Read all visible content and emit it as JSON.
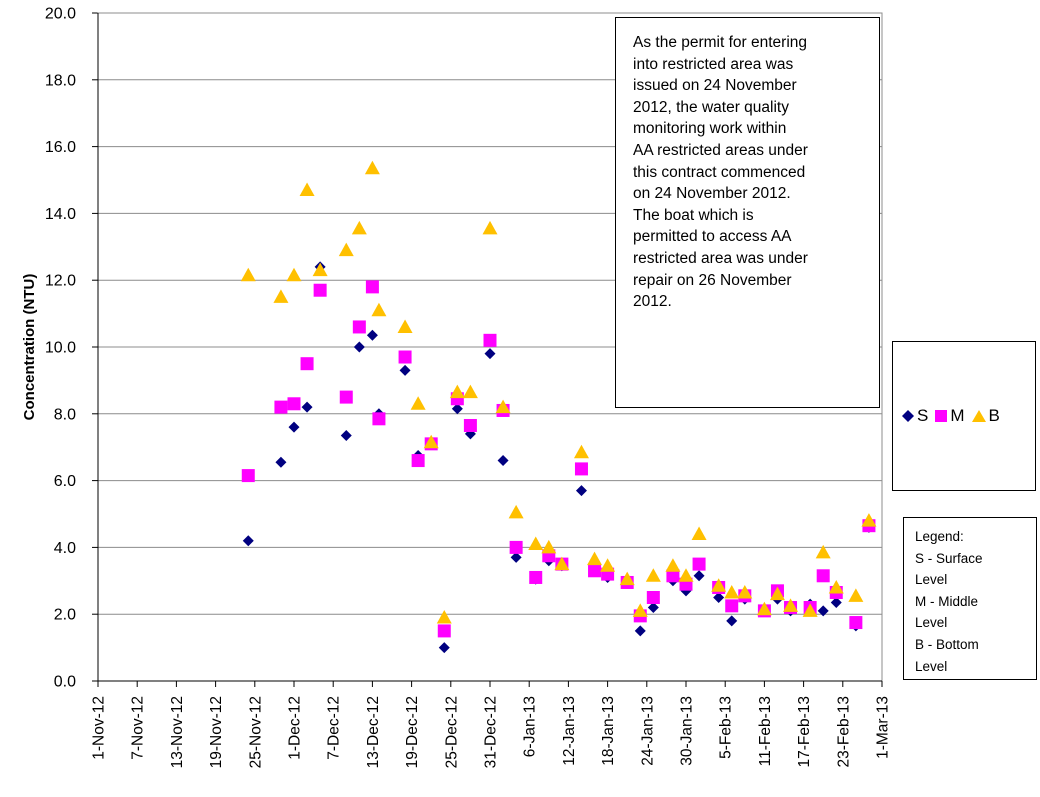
{
  "chart_data": {
    "type": "scatter",
    "ylabel": "Concentration (NTU)",
    "ylim": [
      0,
      20
    ],
    "yticks": [
      "0.0",
      "2.0",
      "4.0",
      "6.0",
      "8.0",
      "10.0",
      "12.0",
      "14.0",
      "16.0",
      "18.0",
      "20.0"
    ],
    "xlim": [
      "2012-11-01",
      "2013-03-01"
    ],
    "xticks": [
      "1-Nov-12",
      "7-Nov-12",
      "13-Nov-12",
      "19-Nov-12",
      "25-Nov-12",
      "1-Dec-12",
      "7-Dec-12",
      "13-Dec-12",
      "19-Dec-12",
      "25-Dec-12",
      "31-Dec-12",
      "6-Jan-13",
      "12-Jan-13",
      "18-Jan-13",
      "24-Jan-13",
      "30-Jan-13",
      "5-Feb-13",
      "11-Feb-13",
      "17-Feb-13",
      "23-Feb-13",
      "1-Mar-13"
    ],
    "grid": "horizontal",
    "legend_position": "right",
    "series": [
      {
        "name": "S",
        "color": "#000080",
        "marker": "diamond",
        "points": [
          [
            "2012-11-24",
            4.2
          ],
          [
            "2012-11-29",
            6.55
          ],
          [
            "2012-12-01",
            7.6
          ],
          [
            "2012-12-03",
            8.2
          ],
          [
            "2012-12-05",
            12.4
          ],
          [
            "2012-12-09",
            7.35
          ],
          [
            "2012-12-11",
            10.0
          ],
          [
            "2012-12-13",
            10.35
          ],
          [
            "2012-12-14",
            8.0
          ],
          [
            "2012-12-18",
            9.3
          ],
          [
            "2012-12-20",
            6.75
          ],
          [
            "2012-12-22",
            7.1
          ],
          [
            "2012-12-24",
            1.0
          ],
          [
            "2012-12-26",
            8.15
          ],
          [
            "2012-12-28",
            7.4
          ],
          [
            "2012-12-31",
            9.8
          ],
          [
            "2013-01-02",
            6.6
          ],
          [
            "2013-01-04",
            3.7
          ],
          [
            "2013-01-07",
            3.05
          ],
          [
            "2013-01-09",
            3.6
          ],
          [
            "2013-01-11",
            3.45
          ],
          [
            "2013-01-14",
            5.7
          ],
          [
            "2013-01-16",
            3.35
          ],
          [
            "2013-01-18",
            3.1
          ],
          [
            "2013-01-21",
            3.0
          ],
          [
            "2013-01-23",
            1.5
          ],
          [
            "2013-01-25",
            2.2
          ],
          [
            "2013-01-28",
            3.0
          ],
          [
            "2013-01-30",
            2.7
          ],
          [
            "2013-02-01",
            3.15
          ],
          [
            "2013-02-04",
            2.5
          ],
          [
            "2013-02-06",
            1.8
          ],
          [
            "2013-02-08",
            2.45
          ],
          [
            "2013-02-11",
            2.1
          ],
          [
            "2013-02-13",
            2.45
          ],
          [
            "2013-02-15",
            2.1
          ],
          [
            "2013-02-18",
            2.3
          ],
          [
            "2013-02-20",
            2.1
          ],
          [
            "2013-02-22",
            2.35
          ],
          [
            "2013-02-25",
            1.65
          ],
          [
            "2013-02-27",
            4.6
          ]
        ]
      },
      {
        "name": "M",
        "color": "#ff00ff",
        "marker": "square",
        "points": [
          [
            "2012-11-24",
            6.15
          ],
          [
            "2012-11-29",
            8.2
          ],
          [
            "2012-12-01",
            8.3
          ],
          [
            "2012-12-03",
            9.5
          ],
          [
            "2012-12-05",
            11.7
          ],
          [
            "2012-12-09",
            8.5
          ],
          [
            "2012-12-11",
            10.6
          ],
          [
            "2012-12-13",
            11.8
          ],
          [
            "2012-12-14",
            7.85
          ],
          [
            "2012-12-18",
            9.7
          ],
          [
            "2012-12-20",
            6.6
          ],
          [
            "2012-12-22",
            7.1
          ],
          [
            "2012-12-24",
            1.5
          ],
          [
            "2012-12-26",
            8.45
          ],
          [
            "2012-12-28",
            7.65
          ],
          [
            "2012-12-31",
            10.2
          ],
          [
            "2013-01-02",
            8.1
          ],
          [
            "2013-01-04",
            4.0
          ],
          [
            "2013-01-07",
            3.1
          ],
          [
            "2013-01-09",
            3.75
          ],
          [
            "2013-01-11",
            3.5
          ],
          [
            "2013-01-14",
            6.35
          ],
          [
            "2013-01-16",
            3.3
          ],
          [
            "2013-01-18",
            3.2
          ],
          [
            "2013-01-21",
            2.95
          ],
          [
            "2013-01-23",
            1.95
          ],
          [
            "2013-01-25",
            2.5
          ],
          [
            "2013-01-28",
            3.15
          ],
          [
            "2013-01-30",
            2.9
          ],
          [
            "2013-02-01",
            3.5
          ],
          [
            "2013-02-04",
            2.8
          ],
          [
            "2013-02-06",
            2.25
          ],
          [
            "2013-02-08",
            2.55
          ],
          [
            "2013-02-11",
            2.1
          ],
          [
            "2013-02-13",
            2.7
          ],
          [
            "2013-02-15",
            2.2
          ],
          [
            "2013-02-18",
            2.2
          ],
          [
            "2013-02-20",
            3.15
          ],
          [
            "2013-02-22",
            2.65
          ],
          [
            "2013-02-25",
            1.75
          ],
          [
            "2013-02-27",
            4.65
          ]
        ]
      },
      {
        "name": "B",
        "color": "#ffc000",
        "marker": "triangle",
        "points": [
          [
            "2012-11-24",
            12.15
          ],
          [
            "2012-11-29",
            11.5
          ],
          [
            "2012-12-01",
            12.15
          ],
          [
            "2012-12-03",
            14.7
          ],
          [
            "2012-12-05",
            12.3
          ],
          [
            "2012-12-09",
            12.9
          ],
          [
            "2012-12-11",
            13.55
          ],
          [
            "2012-12-13",
            15.35
          ],
          [
            "2012-12-14",
            11.1
          ],
          [
            "2012-12-18",
            10.6
          ],
          [
            "2012-12-20",
            8.3
          ],
          [
            "2012-12-22",
            7.15
          ],
          [
            "2012-12-24",
            1.9
          ],
          [
            "2012-12-26",
            8.65
          ],
          [
            "2012-12-28",
            8.65
          ],
          [
            "2012-12-31",
            13.55
          ],
          [
            "2013-01-02",
            8.2
          ],
          [
            "2013-01-04",
            5.05
          ],
          [
            "2013-01-07",
            4.1
          ],
          [
            "2013-01-09",
            4.0
          ],
          [
            "2013-01-11",
            3.5
          ],
          [
            "2013-01-14",
            6.85
          ],
          [
            "2013-01-16",
            3.65
          ],
          [
            "2013-01-18",
            3.45
          ],
          [
            "2013-01-21",
            3.05
          ],
          [
            "2013-01-23",
            2.1
          ],
          [
            "2013-01-25",
            3.15
          ],
          [
            "2013-01-28",
            3.45
          ],
          [
            "2013-01-30",
            3.15
          ],
          [
            "2013-02-01",
            4.4
          ],
          [
            "2013-02-04",
            2.85
          ],
          [
            "2013-02-06",
            2.65
          ],
          [
            "2013-02-08",
            2.65
          ],
          [
            "2013-02-11",
            2.15
          ],
          [
            "2013-02-13",
            2.6
          ],
          [
            "2013-02-15",
            2.25
          ],
          [
            "2013-02-18",
            2.1
          ],
          [
            "2013-02-20",
            3.85
          ],
          [
            "2013-02-22",
            2.8
          ],
          [
            "2013-02-25",
            2.55
          ],
          [
            "2013-02-27",
            4.8
          ]
        ]
      }
    ],
    "annotation": [
      "As the permit for entering",
      "into restricted area was",
      "issued on 24 November",
      "2012,  the water quality",
      "monitoring work within",
      "AA restricted areas under",
      "this contract commenced",
      "on 24 November 2012.",
      "The boat which is",
      "permitted to access AA",
      "restricted area was  under",
      "repair on 26 November",
      "2012."
    ],
    "legend_note": [
      "Legend:",
      "S - Surface",
      "Level",
      "M - Middle",
      "Level",
      "B - Bottom",
      "Level"
    ]
  }
}
